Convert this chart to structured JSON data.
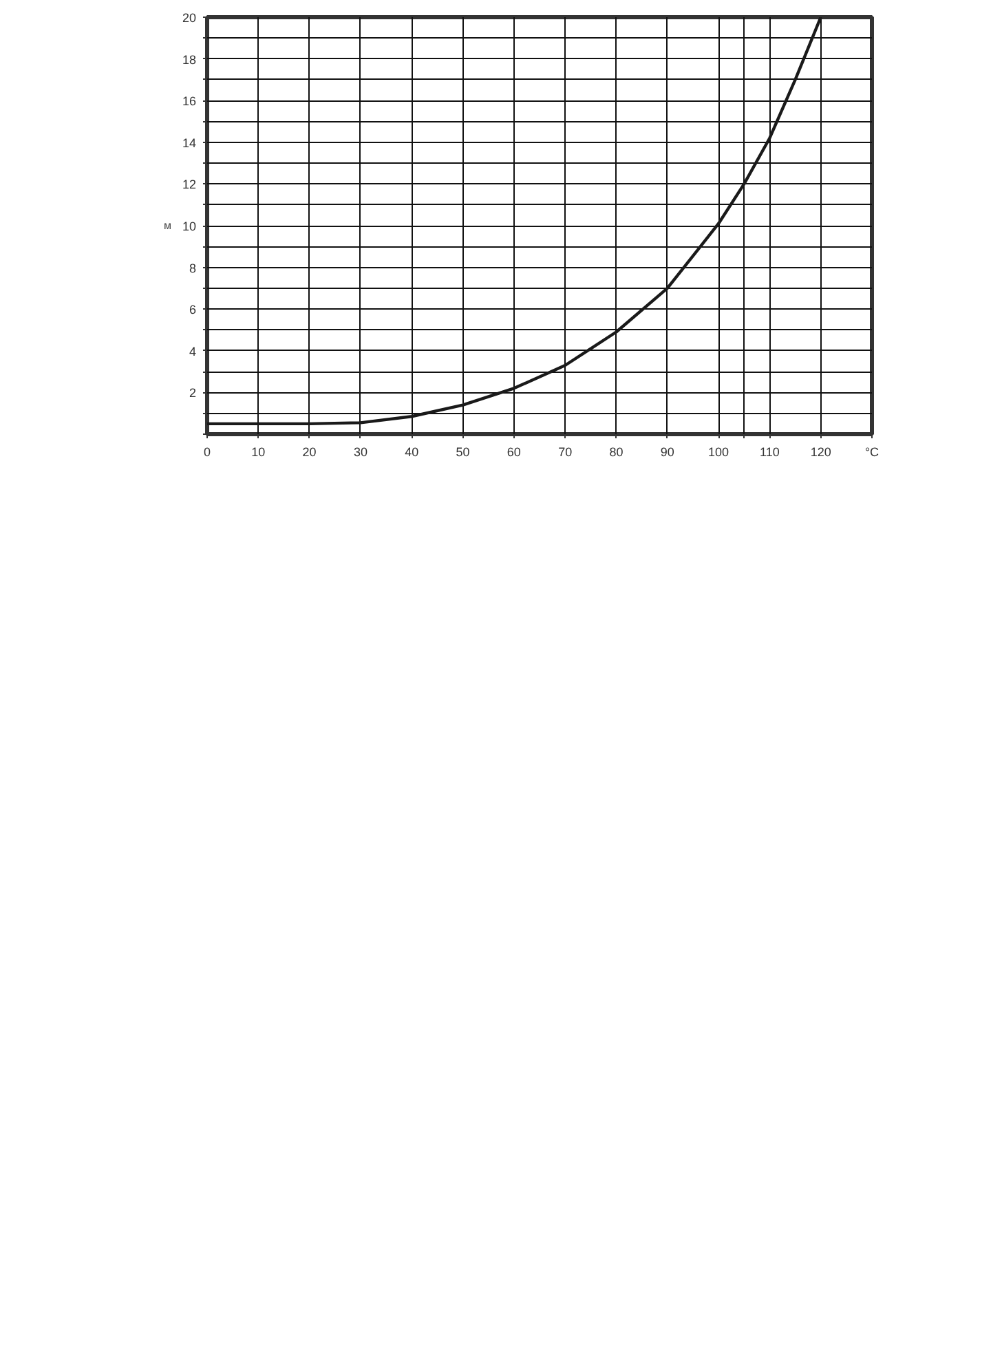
{
  "chart_data": {
    "type": "line",
    "ylabel": "м",
    "x": [
      0,
      10,
      20,
      30,
      40,
      50,
      60,
      70,
      80,
      90,
      100,
      105,
      110,
      115,
      120
    ],
    "series": [
      {
        "color": "#1a1a1a",
        "values": [
          0.5,
          0.5,
          0.5,
          0.55,
          0.85,
          1.4,
          2.2,
          3.3,
          4.9,
          7.0,
          10.1,
          12.0,
          14.2,
          17.0,
          20.0
        ]
      }
    ],
    "xlim": [
      0,
      130
    ],
    "ylim": [
      0,
      20
    ],
    "xticks": [
      0,
      10,
      20,
      30,
      40,
      50,
      60,
      70,
      80,
      90,
      100,
      {
        "value": 105,
        "label": null
      },
      110,
      120,
      {
        "value": 130,
        "label": "°C"
      }
    ],
    "yticks": [
      {
        "value": 0,
        "label": null
      },
      {
        "value": 1,
        "label": null
      },
      2,
      {
        "value": 3,
        "label": null
      },
      4,
      {
        "value": 5,
        "label": null
      },
      6,
      {
        "value": 7,
        "label": null
      },
      8,
      {
        "value": 9,
        "label": null
      },
      10,
      {
        "value": 11,
        "label": null
      },
      12,
      {
        "value": 13,
        "label": null
      },
      14,
      {
        "value": 15,
        "label": null
      },
      16,
      {
        "value": 17,
        "label": null
      },
      18,
      {
        "value": 19,
        "label": null
      },
      20
    ],
    "grid": true,
    "marker": "none",
    "line_style": "solid"
  }
}
